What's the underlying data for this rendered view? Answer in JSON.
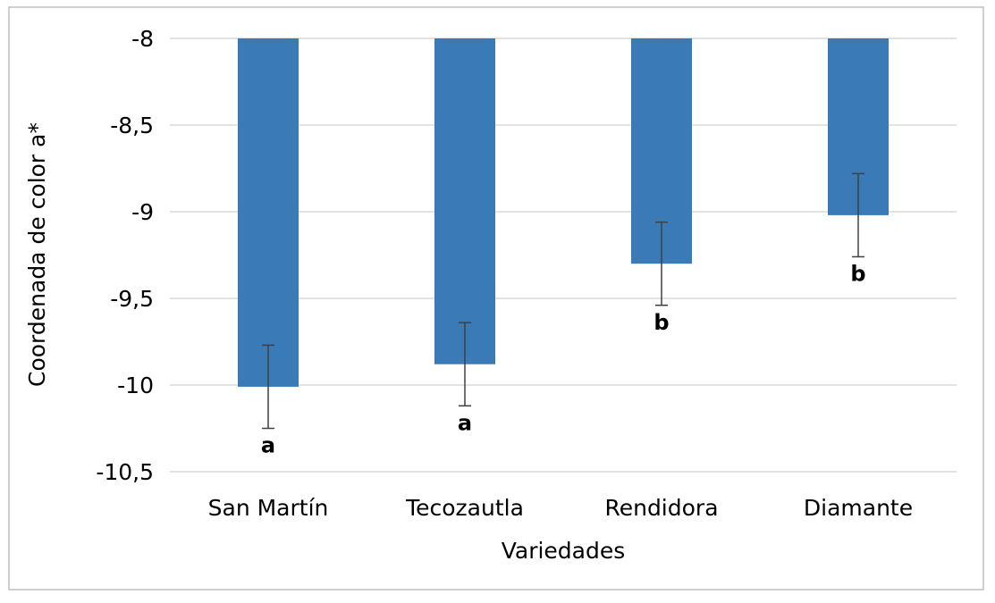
{
  "chart_data": {
    "type": "bar",
    "title": "",
    "xlabel": "Variedades",
    "ylabel": "Coordenada de color a*",
    "categories": [
      "San Martín",
      "Tecozautla",
      "Rendidora",
      "Diamante"
    ],
    "values": [
      -10.01,
      -9.88,
      -9.3,
      -9.02
    ],
    "error": [
      0.24,
      0.24,
      0.24,
      0.24
    ],
    "significance_labels": [
      "a",
      "a",
      "b",
      "b"
    ],
    "ylim": [
      -10.5,
      -8
    ],
    "yticks": [
      -8,
      -8.5,
      -9,
      -9.5,
      -10,
      -10.5
    ],
    "ytick_labels": [
      "-8",
      "-8,5",
      "-9",
      "-9,5",
      "-10",
      "-10,5"
    ],
    "grid": true,
    "bar_color": "#3a7ab7",
    "bars_hang_from_top": true
  }
}
